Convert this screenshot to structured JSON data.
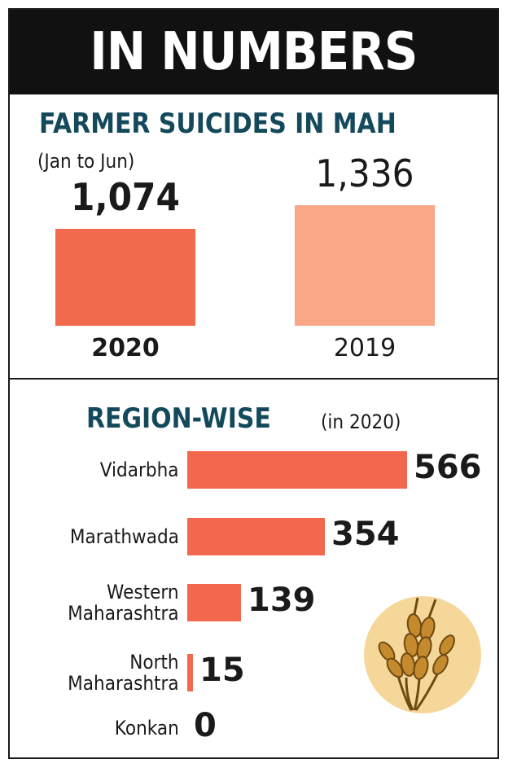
{
  "banner": {
    "title": "IN NUMBERS"
  },
  "section1": {
    "title": "FARMER SUICIDES IN MAH",
    "subtitle": "(Jan to Jun)"
  },
  "section2": {
    "title": "REGION-WISE",
    "subtitle": "(in 2020)"
  },
  "colors": {
    "bar_2020": "#f26a4e",
    "bar_2019": "#f9a787",
    "region_bar": "#f2684f",
    "heading": "#13495b",
    "banner_bg": "#111111"
  },
  "icon": "wheat-icon",
  "chart_data": [
    {
      "type": "bar",
      "title": "FARMER SUICIDES IN MAH",
      "subtitle": "(Jan to Jun)",
      "categories": [
        "2020",
        "2019"
      ],
      "values": [
        1074,
        1336
      ],
      "value_labels": [
        "1,074",
        "1,336"
      ]
    },
    {
      "type": "bar",
      "orientation": "horizontal",
      "title": "REGION-WISE",
      "subtitle": "(in 2020)",
      "categories": [
        "Vidarbha",
        "Marathwada",
        "Western Maharashtra",
        "North Maharashtra",
        "Konkan"
      ],
      "label_lines": [
        [
          "Vidarbha"
        ],
        [
          "Marathwada"
        ],
        [
          "Western",
          "Maharashtra"
        ],
        [
          "North",
          "Maharashtra"
        ],
        [
          "Konkan"
        ]
      ],
      "values": [
        566,
        354,
        139,
        15,
        0
      ]
    }
  ]
}
